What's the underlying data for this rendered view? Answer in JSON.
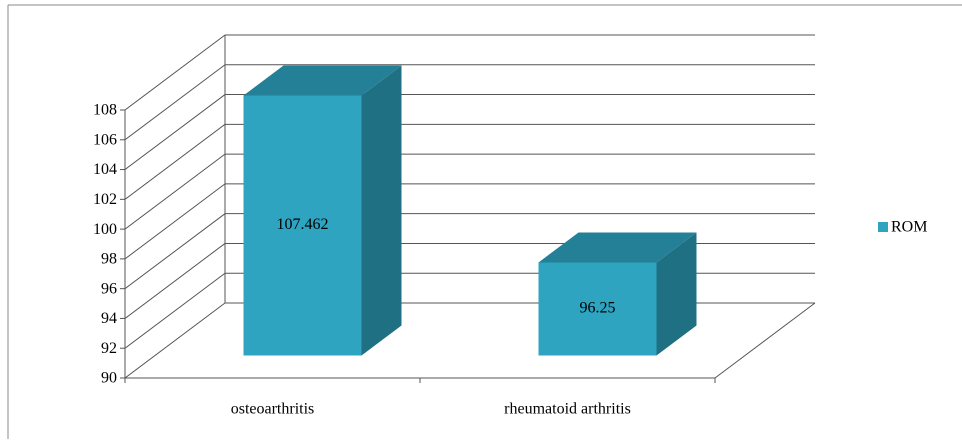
{
  "chart_data": {
    "type": "bar3d",
    "categories": [
      "osteoarthritis",
      "rheumatoid arthritis"
    ],
    "series": [
      {
        "name": "ROM",
        "color": "#2ea4c0",
        "values": [
          107.462,
          96.25
        ]
      }
    ],
    "ylim": [
      90,
      108
    ],
    "yticks": [
      90,
      92,
      94,
      96,
      98,
      100,
      102,
      104,
      106,
      108
    ],
    "grid": true,
    "legend": "right"
  }
}
